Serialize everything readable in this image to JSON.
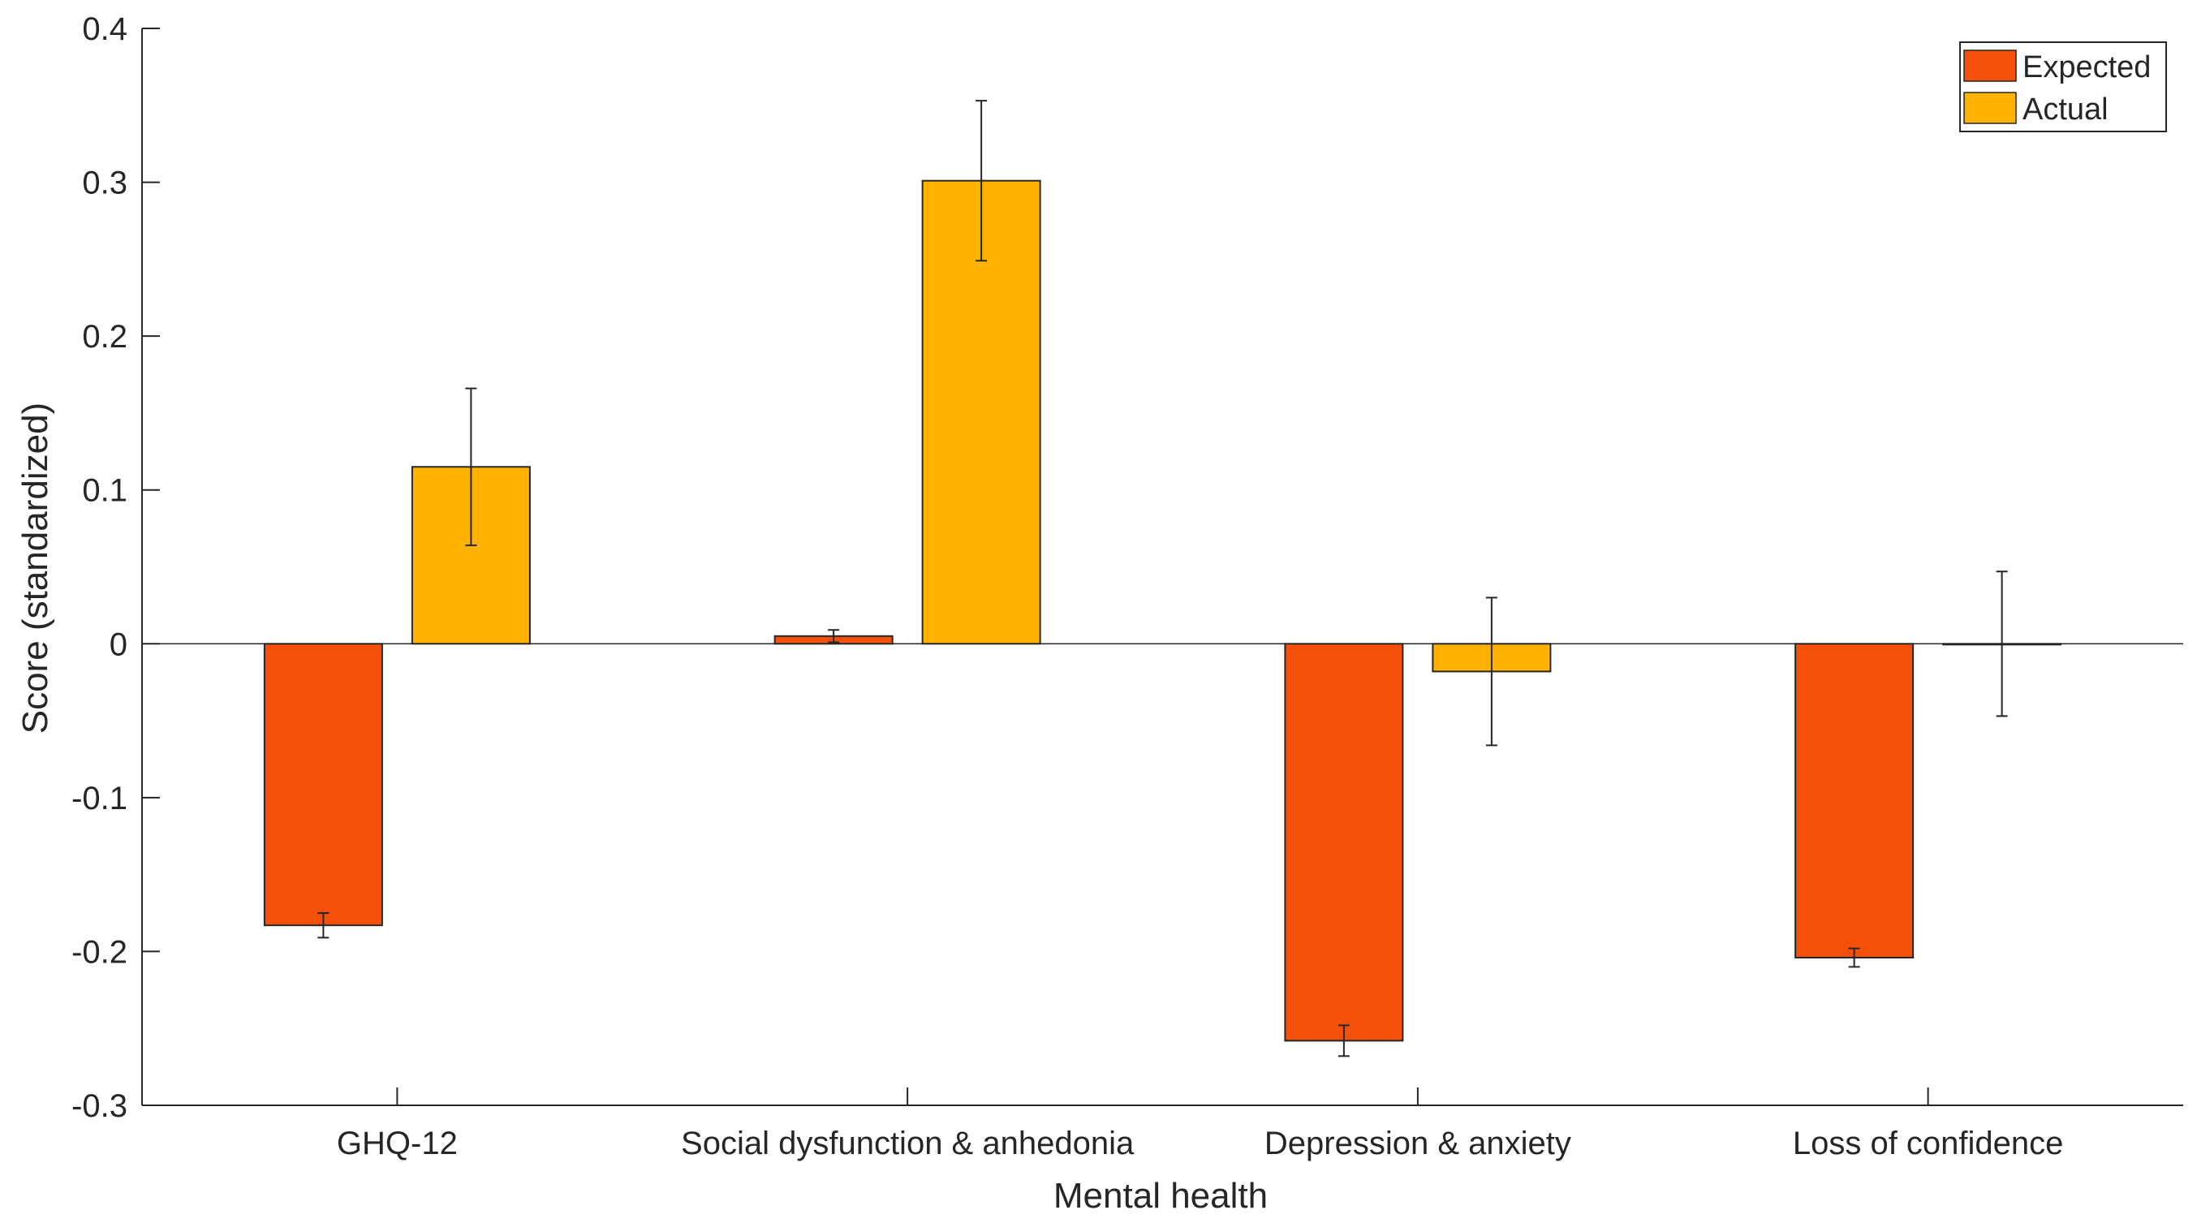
{
  "chart_data": {
    "type": "bar",
    "title": "",
    "xlabel": "Mental health",
    "ylabel": "Score (standardized)",
    "ylim": [
      -0.3,
      0.4
    ],
    "yticks": [
      -0.3,
      -0.2,
      -0.1,
      0,
      0.1,
      0.2,
      0.3,
      0.4
    ],
    "ytick_labels": [
      "-0.3",
      "-0.2",
      "-0.1",
      "0",
      "0.1",
      "0.2",
      "0.3",
      "0.4"
    ],
    "categories": [
      "GHQ-12",
      "Social dysfunction & anhedonia",
      "Depression & anxiety",
      "Loss of confidence"
    ],
    "series": [
      {
        "name": "Expected",
        "color": "#F4500A",
        "values": [
          -0.183,
          0.005,
          -0.258,
          -0.204
        ],
        "error": [
          0.008,
          0.004,
          0.01,
          0.006
        ]
      },
      {
        "name": "Actual",
        "color": "#FFB300",
        "values": [
          0.115,
          0.301,
          -0.018,
          0.0
        ],
        "error": [
          0.051,
          0.052,
          0.048,
          0.047
        ]
      }
    ],
    "legend": [
      "Expected",
      "Actual"
    ],
    "legend_position": "top-right",
    "grid": false
  }
}
